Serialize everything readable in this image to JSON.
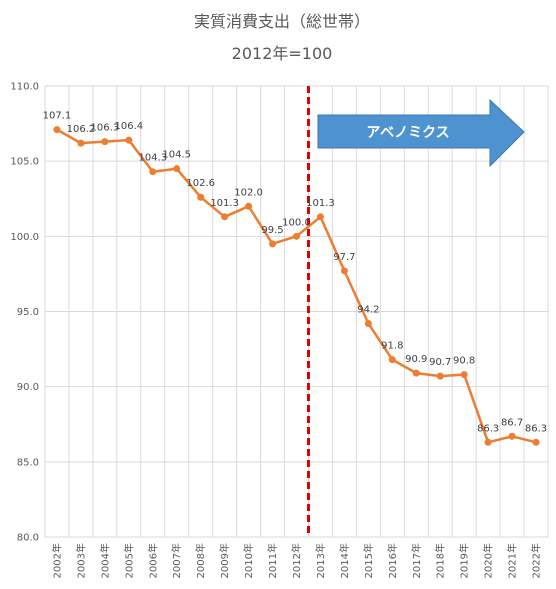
{
  "chart_data": {
    "type": "line",
    "title": "実質消費支出（総世帯）",
    "subtitle": "2012年=100",
    "xlabel": "",
    "ylabel": "",
    "ylim": [
      80,
      110
    ],
    "ytick_step": 5,
    "grid": true,
    "categories": [
      "2002年",
      "2003年",
      "2004年",
      "2005年",
      "2006年",
      "2007年",
      "2008年",
      "2009年",
      "2010年",
      "2011年",
      "2012年",
      "2013年",
      "2014年",
      "2015年",
      "2016年",
      "2017年",
      "2018年",
      "2019年",
      "2020年",
      "2021年",
      "2022年"
    ],
    "series": [
      {
        "values": [
          107.1,
          106.2,
          106.3,
          106.4,
          104.3,
          104.5,
          102.6,
          101.3,
          102.0,
          99.5,
          100.0,
          101.3,
          97.7,
          94.2,
          91.8,
          90.9,
          90.7,
          90.8,
          86.3,
          86.7,
          86.3
        ],
        "color": "#ED7D31"
      }
    ],
    "annotation": {
      "label": "アベノミクス",
      "start_category": "2013年",
      "marker_line_color": "#E00000",
      "arrow_fill": "#4E93CF",
      "arrow_stroke": "#3A78B8"
    }
  }
}
